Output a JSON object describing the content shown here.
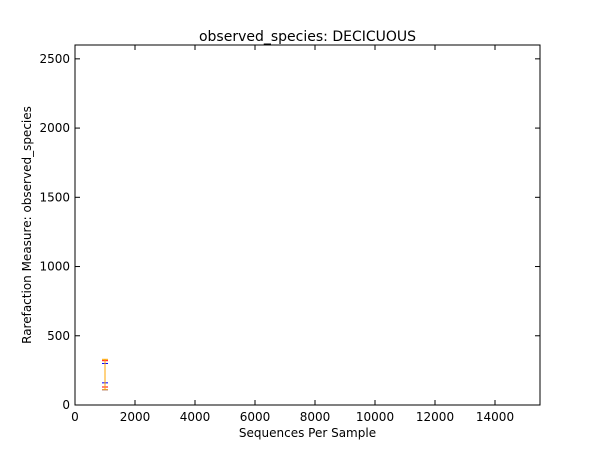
{
  "chart_data": {
    "type": "scatter",
    "title": "observed_species: DECICUOUS",
    "xlabel": "Sequences Per Sample",
    "ylabel": "Rarefaction Measure: observed_species",
    "xlim": [
      0,
      15500
    ],
    "ylim": [
      0,
      2600
    ],
    "x_ticks": [
      0,
      2000,
      4000,
      6000,
      8000,
      10000,
      12000,
      14000
    ],
    "y_ticks": [
      0,
      500,
      1000,
      1500,
      2000,
      2500
    ],
    "grid": false,
    "legend": "none",
    "series": [
      {
        "color": "#0000ff",
        "points": [
          {
            "x": 1000,
            "y": 160,
            "yerr_low": 50,
            "yerr_high": 140
          }
        ]
      },
      {
        "color": "#ff0000",
        "points": [
          {
            "x": 1000,
            "y": 160,
            "yerr_low": 30,
            "yerr_high": 160
          }
        ]
      },
      {
        "color": "#ffa500",
        "points": [
          {
            "x": 1000,
            "y": 160,
            "yerr_low": 50,
            "yerr_high": 170
          }
        ]
      }
    ]
  }
}
